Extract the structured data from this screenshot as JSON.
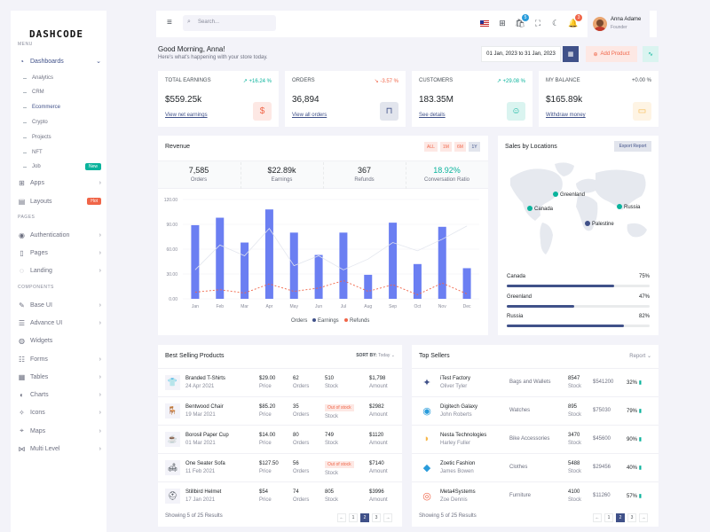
{
  "app": {
    "logo": "DASHCODE"
  },
  "sidebar": {
    "menu_title": "MENU",
    "pages_title": "PAGES",
    "components_title": "COMPONENTS",
    "dashboards": "Dashboards",
    "dash_items": [
      "Analytics",
      "CRM",
      "Ecommerce",
      "Crypto",
      "Projects",
      "NFT",
      "Job"
    ],
    "job_badge": "New",
    "apps": "Apps",
    "layouts": "Layouts",
    "layouts_badge": "Hot",
    "pages": [
      "Authentication",
      "Pages",
      "Landing"
    ],
    "components": [
      "Base UI",
      "Advance UI",
      "Widgets",
      "Forms",
      "Tables",
      "Charts",
      "Icons",
      "Maps",
      "Multi Level"
    ]
  },
  "topbar": {
    "search_placeholder": "Search...",
    "cart_count": "5",
    "notif_count": "3",
    "user_name": "Anna Adame",
    "user_role": "Founder"
  },
  "greeting": {
    "title": "Good Morning, Anna!",
    "subtitle": "Here's what's happening with your store today.",
    "date_range": "01 Jan, 2023 to 31 Jan, 2023",
    "add_product": "Add Product"
  },
  "kpis": [
    {
      "label": "TOTAL EARNINGS",
      "change": "↗ +16.24 %",
      "value": "$559.25k",
      "link": "View net earnings",
      "change_color": "#0ab39c",
      "icon": "$",
      "icon_color": "#f06548",
      "icon_bg": "#fde8e4"
    },
    {
      "label": "ORDERS",
      "change": "↘ -3.57 %",
      "value": "36,894",
      "link": "View all orders",
      "change_color": "#f06548",
      "icon": "🛍",
      "icon_color": "#405189",
      "icon_bg": "#e2e5ed"
    },
    {
      "label": "CUSTOMERS",
      "change": "↗ +29.08 %",
      "value": "183.35M",
      "link": "See details",
      "change_color": "#0ab39c",
      "icon": "☺",
      "icon_color": "#0ab39c",
      "icon_bg": "#daf4f0"
    },
    {
      "label": "MY BALANCE",
      "change": "+0.00 %",
      "value": "$165.89k",
      "link": "Withdraw money",
      "change_color": "#495057",
      "icon": "▭",
      "icon_color": "#f7b84b",
      "icon_bg": "#fef4e4"
    }
  ],
  "revenue": {
    "title": "Revenue",
    "filters": [
      "ALL",
      "1M",
      "6M",
      "1Y"
    ],
    "stats": [
      {
        "value": "7,585",
        "label": "Orders"
      },
      {
        "value": "$22.89k",
        "label": "Earnings"
      },
      {
        "value": "367",
        "label": "Refunds"
      },
      {
        "value": "18.92%",
        "label": "Conversation Ratio"
      }
    ],
    "legend": [
      "Orders",
      "Earnings",
      "Refunds"
    ]
  },
  "chart_data": {
    "type": "bar",
    "categories": [
      "Jan",
      "Feb",
      "Mar",
      "Apr",
      "May",
      "Jun",
      "Jul",
      "Aug",
      "Sep",
      "Oct",
      "Nov",
      "Dec"
    ],
    "yticks": [
      "120.00",
      "90.00",
      "60.00",
      "30.00",
      "0.00"
    ],
    "ylim": [
      0,
      120
    ],
    "series": [
      {
        "name": "Orders",
        "type": "line",
        "values": [
          35,
          65,
          52,
          85,
          40,
          52,
          35,
          48,
          68,
          58,
          72,
          88
        ]
      },
      {
        "name": "Earnings",
        "type": "bar",
        "values": [
          89,
          98,
          68,
          108,
          80,
          53,
          80,
          29,
          92,
          42,
          87,
          37
        ]
      },
      {
        "name": "Refunds",
        "type": "line",
        "values": [
          8,
          11,
          7,
          18,
          9,
          13,
          22,
          9,
          17,
          5,
          19,
          6
        ]
      }
    ]
  },
  "sales_locations": {
    "title": "Sales by Locations",
    "export": "Export Report",
    "map_labels": [
      "Greenland",
      "Canada",
      "Russia",
      "Palestine"
    ],
    "rows": [
      {
        "name": "Canada",
        "pct": "75%",
        "value": 0.75
      },
      {
        "name": "Greenland",
        "pct": "47%",
        "value": 0.47
      },
      {
        "name": "Russia",
        "pct": "82%",
        "value": 0.82
      }
    ]
  },
  "best_selling": {
    "title": "Best Selling Products",
    "sort_label": "SORT BY:",
    "sort_value": "Today",
    "rows": [
      {
        "name": "Branded T-Shirts",
        "date": "24 Apr 2021",
        "price": "$29.00",
        "orders": "62",
        "stock": "510",
        "amount": "$1,798",
        "out": false
      },
      {
        "name": "Bentwood Chair",
        "date": "19 Mar 2021",
        "price": "$85.20",
        "orders": "35",
        "stock": "Out of stock",
        "amount": "$2982",
        "out": true
      },
      {
        "name": "Borosil Paper Cup",
        "date": "01 Mar 2021",
        "price": "$14.00",
        "orders": "80",
        "stock": "749",
        "amount": "$1120",
        "out": false
      },
      {
        "name": "One Seater Sofa",
        "date": "11 Feb 2021",
        "price": "$127.50",
        "orders": "56",
        "stock": "Out of stock",
        "amount": "$7140",
        "out": true
      },
      {
        "name": "Stillbird Helmet",
        "date": "17 Jan 2021",
        "price": "$54",
        "orders": "74",
        "stock": "805",
        "amount": "$3996",
        "out": false
      }
    ],
    "col_labels": {
      "price": "Price",
      "orders": "Orders",
      "stock": "Stock",
      "amount": "Amount"
    },
    "footer": "Showing 5 of 25 Results",
    "pages": [
      "←",
      "1",
      "2",
      "3",
      "→"
    ]
  },
  "top_sellers": {
    "title": "Top Sellers",
    "report": "Report",
    "rows": [
      {
        "name": "iTest Factory",
        "person": "Oliver Tyler",
        "category": "Bags and Wallets",
        "stock": "8547",
        "amount": "$541200",
        "pct": "32%"
      },
      {
        "name": "Digitech Galaxy",
        "person": "John Roberts",
        "category": "Watches",
        "stock": "895",
        "amount": "$75030",
        "pct": "79%"
      },
      {
        "name": "Nesta Technologies",
        "person": "Harley Fuller",
        "category": "Bike Accessories",
        "stock": "3470",
        "amount": "$45600",
        "pct": "90%"
      },
      {
        "name": "Zoetic Fashion",
        "person": "James Bowen",
        "category": "Clothes",
        "stock": "5488",
        "amount": "$29456",
        "pct": "40%"
      },
      {
        "name": "Meta4Systems",
        "person": "Zoe Dennis",
        "category": "Furniture",
        "stock": "4100",
        "amount": "$11260",
        "pct": "57%"
      }
    ],
    "stock_label": "Stock",
    "footer": "Showing 5 of 25 Results",
    "pages": [
      "←",
      "1",
      "2",
      "3",
      "→"
    ]
  }
}
